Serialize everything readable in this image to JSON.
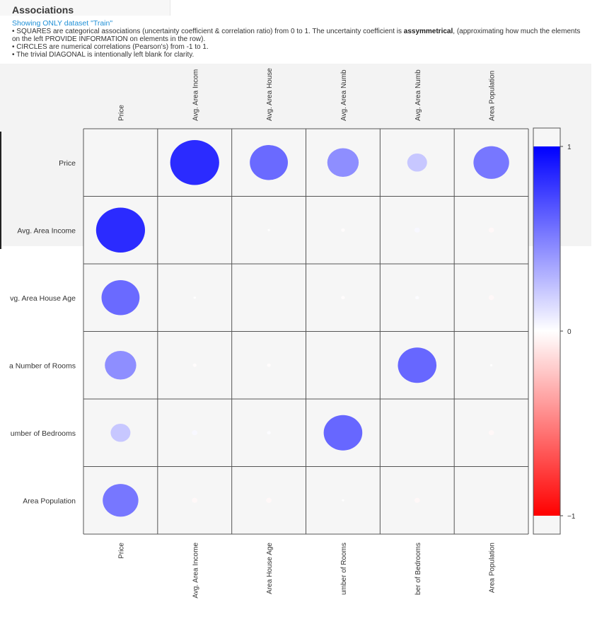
{
  "header": {
    "title": "Associations",
    "subtitle": "Showing ONLY dataset \"Train\"",
    "desc_1a": "• SQUARES are categorical associations (uncertainty coefficient & correlation ratio) from 0 to 1. The uncertainty coefficient is ",
    "desc_1b": "assymmetrical",
    "desc_1c": ", (approximating how much the elements on the left PROVIDE INFORMATION on elements in the row).",
    "desc_2": "• CIRCLES are numerical correlations (Pearson's) from -1 to 1.",
    "desc_3": "• The trivial DIAGONAL is intentionally left blank for clarity."
  },
  "chart_data": {
    "type": "heatmap",
    "marker": "circle",
    "top_labels": [
      "Price",
      "Avg. Area Incom",
      "Avg. Area House",
      "Avg. Area Numb",
      "Avg. Area Numb",
      "Area Population"
    ],
    "bottom_labels": [
      "Price",
      "Avg. Area Income",
      "Area House Age",
      "umber of Rooms",
      "ber of Bedrooms",
      "Area Population"
    ],
    "row_labels": [
      "Price",
      "Avg. Area Income",
      "vg. Area House Age",
      "a Number of Rooms",
      "umber of Bedrooms",
      "Area Population"
    ],
    "values": [
      [
        null,
        0.64,
        0.45,
        0.34,
        0.17,
        0.41
      ],
      [
        0.64,
        null,
        0.0,
        -0.01,
        0.02,
        -0.02
      ],
      [
        0.45,
        0.0,
        null,
        -0.01,
        0.01,
        -0.02
      ],
      [
        0.34,
        -0.01,
        -0.01,
        null,
        0.46,
        0.0
      ],
      [
        0.17,
        0.02,
        0.01,
        0.46,
        null,
        -0.02
      ],
      [
        0.41,
        -0.02,
        -0.02,
        0.0,
        -0.02,
        null
      ]
    ],
    "colorbar": {
      "min": -1,
      "max": 1,
      "ticks": [
        1,
        0,
        -1
      ],
      "tick_labels": [
        "1",
        "0",
        "−1"
      ],
      "colors": {
        "negative": "#ff0000",
        "zero": "#ffffff",
        "positive": "#0000ff"
      }
    },
    "diagonal": "blank",
    "grid": true
  }
}
